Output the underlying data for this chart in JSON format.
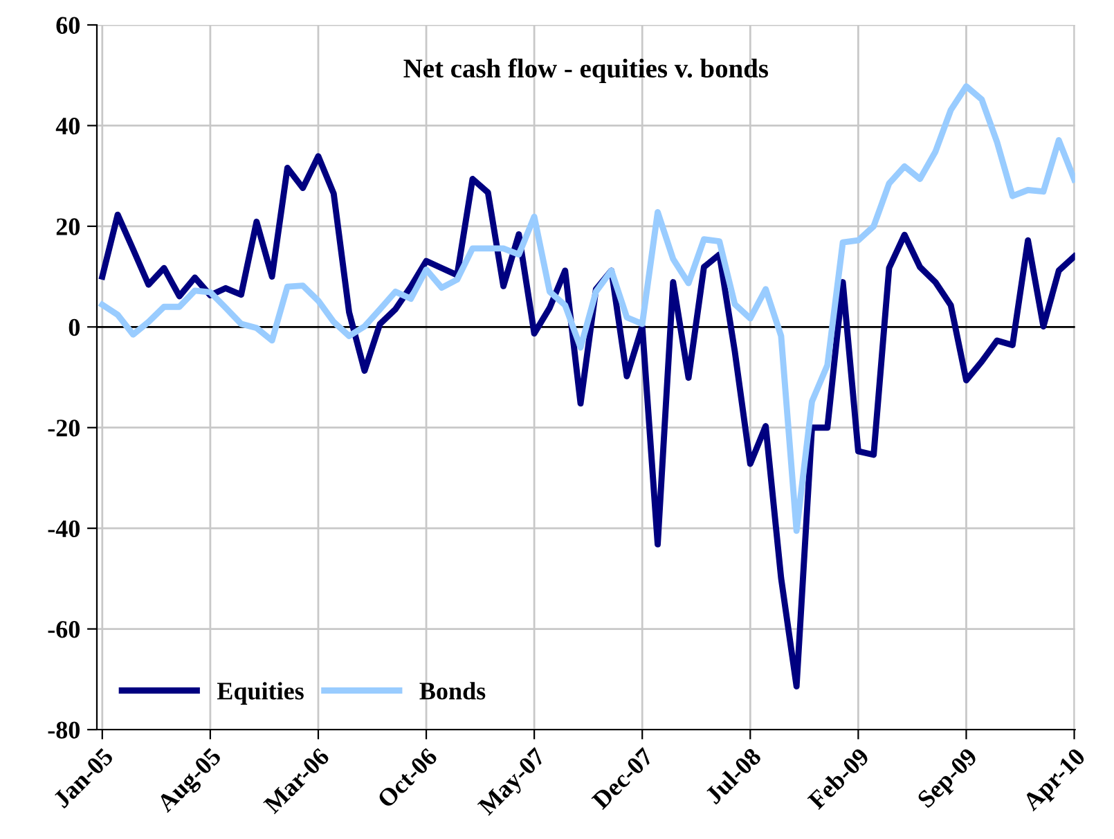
{
  "chart_data": {
    "type": "line",
    "title": "Net cash flow - equities v. bonds",
    "categories": [
      "Jan-05",
      null,
      null,
      null,
      null,
      null,
      null,
      "Aug-05",
      null,
      null,
      null,
      null,
      null,
      null,
      "Mar-06",
      null,
      null,
      null,
      null,
      null,
      null,
      "Oct-06",
      null,
      null,
      null,
      null,
      null,
      null,
      "May-07",
      null,
      null,
      null,
      null,
      null,
      null,
      "Dec-07",
      null,
      null,
      null,
      null,
      null,
      null,
      "Jul-08",
      null,
      null,
      null,
      null,
      null,
      null,
      "Feb-09",
      null,
      null,
      null,
      null,
      null,
      null,
      "Sep-09",
      null,
      null,
      null,
      null,
      null,
      null,
      "Apr-10"
    ],
    "series": [
      {
        "name": "Equities",
        "color": "#000080",
        "values": [
          10,
          22.3,
          15.4,
          8.4,
          11.7,
          6.1,
          9.8,
          6.3,
          7.7,
          6.4,
          20.9,
          10,
          31.6,
          27.6,
          33.9,
          26.5,
          2.9,
          -8.7,
          0.6,
          3.5,
          8,
          13.1,
          11.7,
          10.3,
          29.4,
          26.7,
          8.1,
          18.4,
          -1.3,
          3.8,
          11.2,
          -15.2,
          7.5,
          11.2,
          -9.8,
          0.1,
          -43.2,
          8.9,
          -10.1,
          11.9,
          14.4,
          -4.9,
          -27.2,
          -19.7,
          -49.9,
          -71.4,
          -20,
          -20,
          8.9,
          -24.7,
          -25.4,
          11.7,
          18.3,
          11.9,
          8.9,
          4.3,
          -10.6,
          -6.9,
          -2.7,
          -3.6,
          17.2,
          0.1,
          11.2,
          14
        ]
      },
      {
        "name": "Bonds",
        "color": "#99ccff",
        "values": [
          4.4,
          2.4,
          -1.5,
          1,
          4,
          4,
          7.2,
          6.9,
          3.8,
          0.6,
          -0.2,
          -2.7,
          8,
          8.2,
          5.2,
          1,
          -1.8,
          0.1,
          3.5,
          7,
          5.6,
          11.4,
          7.8,
          9.4,
          15.6,
          15.6,
          15.6,
          14.4,
          21.9,
          7,
          4.3,
          -4.1,
          7,
          11.2,
          1.9,
          0.6,
          22.8,
          13.5,
          8.7,
          17.4,
          17,
          4.5,
          1.7,
          7.5,
          -1.8,
          -40.5,
          -14.8,
          -7.6,
          16.8,
          17.2,
          20,
          28.5,
          31.9,
          29.4,
          34.8,
          43.1,
          47.8,
          45.2,
          36.7,
          26,
          27.2,
          26.9,
          37.1,
          29.3
        ]
      }
    ],
    "ylim": [
      -80,
      60
    ],
    "yticks": [
      -80,
      -60,
      -40,
      -20,
      0,
      20,
      40,
      60
    ],
    "ref_lines": [
      {
        "axis": "y",
        "value": 0,
        "color": "#000000"
      }
    ],
    "grid": true,
    "legend": "bottom left",
    "marker": "none",
    "line_style": "solid"
  }
}
